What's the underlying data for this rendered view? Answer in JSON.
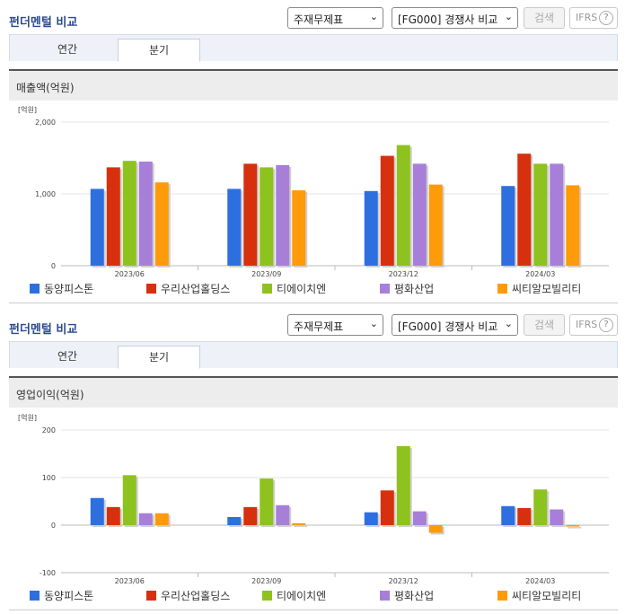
{
  "panels": [
    {
      "title": "펀더멘털 비교",
      "select1": "주재무제표",
      "select2": "[FG000] 경쟁사 비교",
      "search": "검색",
      "ifrs": "IFRS",
      "tabs": [
        "연간",
        "분기"
      ],
      "active_tab": 1,
      "subtitle": "매출액(억원)"
    },
    {
      "title": "펀더멘털 비교",
      "select1": "주재무제표",
      "select2": "[FG000] 경쟁사 비교",
      "search": "검색",
      "ifrs": "IFRS",
      "tabs": [
        "연간",
        "분기"
      ],
      "active_tab": 1,
      "subtitle": "영업이익(억원)"
    }
  ],
  "chart_data": [
    {
      "type": "bar",
      "title": "매출액(억원)",
      "unit_label": "[억원]",
      "categories": [
        "2023/06",
        "2023/09",
        "2023/12",
        "2024/03"
      ],
      "ylim": [
        0,
        2000
      ],
      "yticks": [
        0,
        1000,
        2000
      ],
      "ytick_labels": [
        "0",
        "1,000",
        "2,000"
      ],
      "series": [
        {
          "name": "동양피스톤",
          "color": "#2e6fe0",
          "values": [
            1070,
            1070,
            1040,
            1110
          ]
        },
        {
          "name": "우리산업홀딩스",
          "color": "#d7300e",
          "values": [
            1370,
            1420,
            1530,
            1560
          ]
        },
        {
          "name": "티에이치엔",
          "color": "#8ec21f",
          "values": [
            1460,
            1370,
            1680,
            1420
          ]
        },
        {
          "name": "평화산업",
          "color": "#a77fd9",
          "values": [
            1450,
            1400,
            1420,
            1420
          ]
        },
        {
          "name": "씨티알모빌리티",
          "color": "#ff9a0a",
          "values": [
            1160,
            1050,
            1130,
            1120
          ]
        }
      ]
    },
    {
      "type": "bar",
      "title": "영업이익(억원)",
      "unit_label": "[억원]",
      "categories": [
        "2023/06",
        "2023/09",
        "2023/12",
        "2024/03"
      ],
      "ylim": [
        -100,
        200
      ],
      "yticks": [
        -100,
        0,
        100,
        200
      ],
      "ytick_labels": [
        "-100",
        "0",
        "100",
        "200"
      ],
      "series": [
        {
          "name": "동양피스톤",
          "color": "#2e6fe0",
          "values": [
            57,
            17,
            27,
            40
          ]
        },
        {
          "name": "우리산업홀딩스",
          "color": "#d7300e",
          "values": [
            38,
            38,
            73,
            36
          ]
        },
        {
          "name": "티에이치엔",
          "color": "#8ec21f",
          "values": [
            105,
            98,
            166,
            75
          ]
        },
        {
          "name": "평화산업",
          "color": "#a77fd9",
          "values": [
            25,
            42,
            29,
            33
          ]
        },
        {
          "name": "씨티알모빌리티",
          "color": "#ff9a0a",
          "values": [
            25,
            4,
            -16,
            -3
          ]
        }
      ]
    }
  ]
}
